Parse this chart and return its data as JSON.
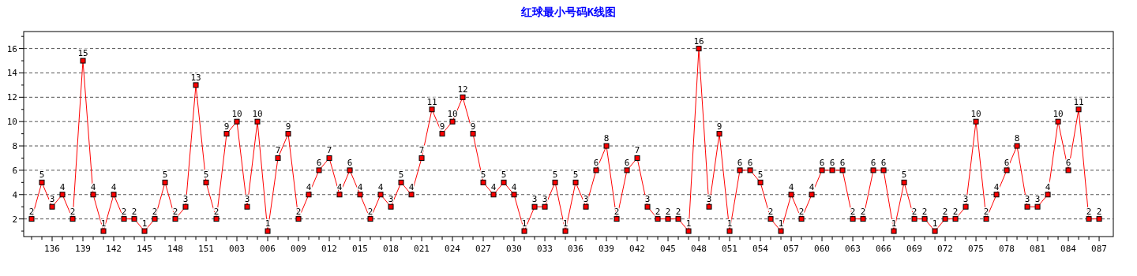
{
  "chart_data": {
    "type": "line",
    "title": "红球最小号码K线图",
    "categories": [
      null,
      null,
      "136",
      null,
      null,
      "139",
      null,
      null,
      "142",
      null,
      null,
      "145",
      null,
      null,
      "148",
      null,
      null,
      "151",
      null,
      null,
      "003",
      null,
      null,
      "006",
      null,
      null,
      "009",
      null,
      null,
      "012",
      null,
      null,
      "015",
      null,
      null,
      "018",
      null,
      null,
      "021",
      null,
      null,
      "024",
      null,
      null,
      "027",
      null,
      null,
      "030",
      null,
      null,
      "033",
      null,
      null,
      "036",
      null,
      null,
      "039",
      null,
      null,
      "042",
      null,
      null,
      "045",
      null,
      null,
      "048",
      null,
      null,
      "051",
      null,
      null,
      "054",
      null,
      null,
      "057",
      null,
      null,
      "060",
      null,
      null,
      "063",
      null,
      null,
      "066",
      null,
      null,
      "069",
      null,
      null,
      "072",
      null,
      null,
      "075",
      null,
      null,
      "078",
      null,
      null,
      "081",
      null,
      null,
      "084",
      null,
      null,
      "087"
    ],
    "series": [
      {
        "color": "#ff0000",
        "values": [
          2,
          5,
          3,
          4,
          2,
          15,
          4,
          1,
          4,
          2,
          2,
          1,
          2,
          5,
          2,
          3,
          13,
          5,
          2,
          9,
          10,
          3,
          10,
          1,
          7,
          9,
          2,
          4,
          6,
          7,
          4,
          6,
          4,
          2,
          4,
          3,
          5,
          4,
          7,
          11,
          9,
          10,
          12,
          9,
          5,
          4,
          5,
          4,
          1,
          3,
          3,
          5,
          1,
          5,
          3,
          6,
          8,
          2,
          6,
          7,
          3,
          2,
          2,
          2,
          1,
          16,
          3,
          9,
          1,
          6,
          6,
          5,
          2,
          1,
          4,
          2,
          4,
          6,
          6,
          6,
          2,
          2,
          6,
          6,
          1,
          5,
          2,
          2,
          1,
          2,
          2,
          3,
          10,
          2,
          4,
          6,
          8,
          3,
          3,
          4,
          10,
          6,
          11,
          2,
          2
        ]
      }
    ],
    "ylim": [
      0.55,
      17.4
    ],
    "yticks": [
      {
        "value": 1,
        "label": null
      },
      2,
      {
        "value": 3,
        "label": null
      },
      4,
      {
        "value": 5,
        "label": null
      },
      6,
      {
        "value": 7,
        "label": null
      },
      8,
      {
        "value": 9,
        "label": null
      },
      10,
      {
        "value": 11,
        "label": null
      },
      12,
      {
        "value": 13,
        "label": null
      },
      14,
      {
        "value": 15,
        "label": null
      },
      16,
      {
        "value": 17,
        "label": null
      }
    ],
    "grid": "y",
    "marker": "square",
    "line_style": "solid",
    "data_labels": true
  }
}
